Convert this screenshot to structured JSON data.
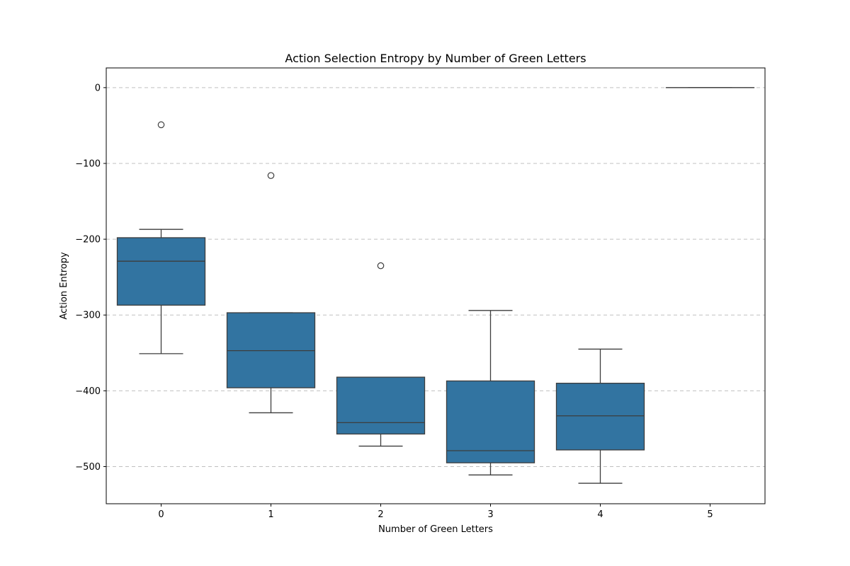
{
  "chart_data": {
    "type": "box",
    "title": "Action Selection Entropy by Number of Green Letters",
    "xlabel": "Number of Green Letters",
    "ylabel": "Action Entropy",
    "categories": [
      "0",
      "1",
      "2",
      "3",
      "4",
      "5"
    ],
    "yticks": [
      0,
      -100,
      -200,
      -300,
      -400,
      -500
    ],
    "ylim": [
      -549,
      26
    ],
    "grid": "horizontal dashed",
    "box_color": "#3274a1",
    "line_color": "#3d3d3d",
    "boxes": [
      {
        "category": "0",
        "whisker_low": -351,
        "q1": -287,
        "median": -229,
        "q3": -198,
        "whisker_high": -187,
        "outliers": [
          -49
        ]
      },
      {
        "category": "1",
        "whisker_low": -429,
        "q1": -396,
        "median": -347,
        "q3": -297,
        "whisker_high": -297,
        "outliers": [
          -116
        ]
      },
      {
        "category": "2",
        "whisker_low": -473,
        "q1": -457,
        "median": -442,
        "q3": -382,
        "whisker_high": -382,
        "outliers": [
          -235
        ]
      },
      {
        "category": "3",
        "whisker_low": -511,
        "q1": -495,
        "median": -479,
        "q3": -387,
        "whisker_high": -294,
        "outliers": []
      },
      {
        "category": "4",
        "whisker_low": -522,
        "q1": -478,
        "median": -433,
        "q3": -390,
        "whisker_high": -345,
        "outliers": []
      },
      {
        "category": "5",
        "whisker_low": 0,
        "q1": 0,
        "median": 0,
        "q3": 0,
        "whisker_high": 0,
        "outliers": []
      }
    ]
  }
}
